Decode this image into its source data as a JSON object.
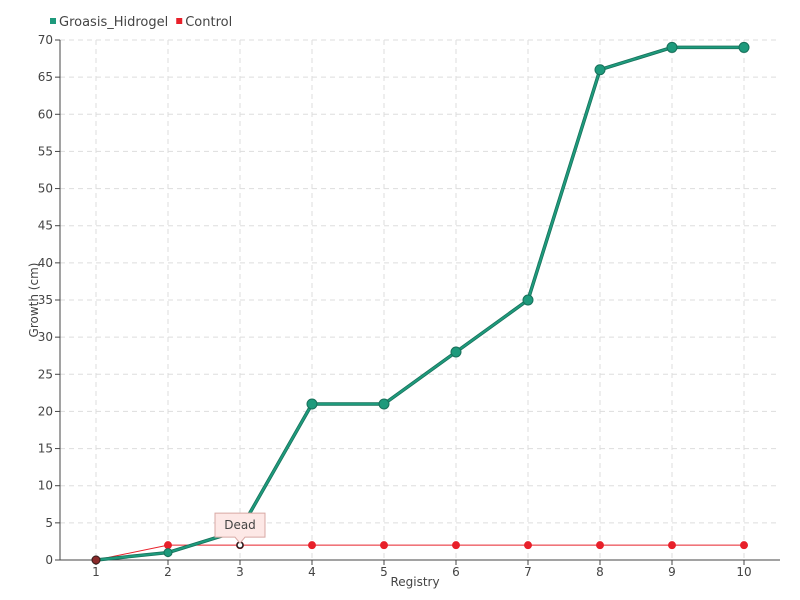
{
  "chart_data": {
    "type": "line",
    "xlabel": "Registry",
    "ylabel": "Growth (cm)",
    "categories": [
      "1",
      "2",
      "3",
      "4",
      "5",
      "6",
      "7",
      "8",
      "9",
      "10"
    ],
    "ylim": [
      0,
      70
    ],
    "yticks": [
      0,
      5,
      10,
      15,
      20,
      25,
      30,
      35,
      40,
      45,
      50,
      55,
      60,
      65,
      70
    ],
    "grid": true,
    "legend_position": "top-left",
    "series": [
      {
        "name": "Groasis_Hidrogel",
        "color": "#1e9a7c",
        "values": [
          0,
          1,
          4,
          21,
          21,
          28,
          35,
          66,
          69,
          69
        ]
      },
      {
        "name": "Control",
        "color": "#e8202a",
        "values": [
          0,
          2,
          2,
          2,
          2,
          2,
          2,
          2,
          2,
          2
        ]
      }
    ],
    "annotations": [
      {
        "text": "Dead",
        "series": "Control",
        "category": "3",
        "value": 2
      }
    ]
  }
}
